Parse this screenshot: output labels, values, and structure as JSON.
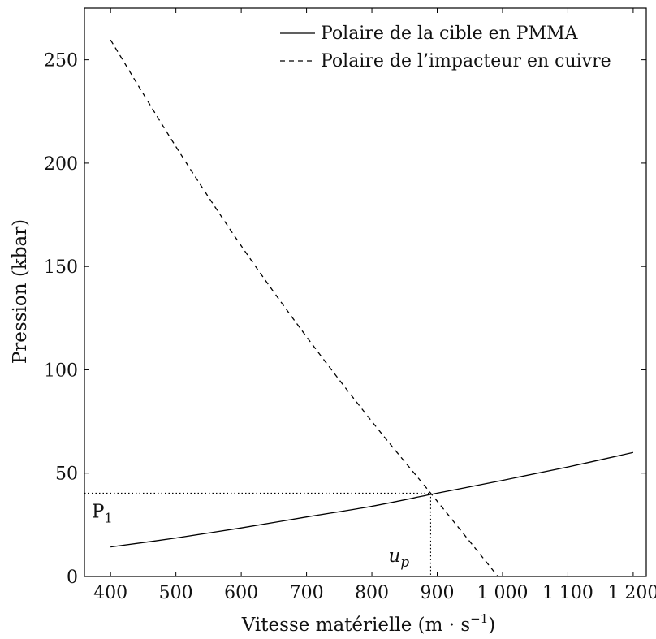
{
  "chart_data": {
    "type": "line",
    "xlabel": "Vitesse matérielle (m · s",
    "xlabel_sup": "−1",
    "xlabel_close": ")",
    "ylabel": "Pression (kbar)",
    "xlim": [
      360,
      1220
    ],
    "ylim": [
      0,
      275
    ],
    "x_ticks": [
      400,
      500,
      600,
      700,
      800,
      900,
      1000,
      1100,
      1200
    ],
    "x_tick_labels": [
      "400",
      "500",
      "600",
      "700",
      "800",
      "900",
      "1 000",
      "1 100",
      "1 200"
    ],
    "y_ticks": [
      0,
      50,
      100,
      150,
      200,
      250
    ],
    "y_tick_labels": [
      "0",
      "50",
      "100",
      "150",
      "200",
      "250"
    ],
    "grid": false,
    "legend_position": "top-right",
    "series": [
      {
        "name": "Polaire de la cible en PMMA",
        "style": "solid",
        "x": [
          400,
          500,
          600,
          700,
          800,
          900,
          1000,
          1100,
          1200
        ],
        "y": [
          14.3,
          18.6,
          23.5,
          28.8,
          34.0,
          40.3,
          46.5,
          53.0,
          60.0
        ]
      },
      {
        "name": "Polaire de l’impacteur en cuivre",
        "style": "dashed",
        "x": [
          400,
          500,
          600,
          700,
          800,
          890,
          993
        ],
        "y": [
          259.6,
          208.0,
          160.0,
          116.0,
          75.0,
          40.3,
          0.0
        ]
      }
    ],
    "annotations": {
      "intersection": {
        "x": 890,
        "y": 40.3
      },
      "p1_base": "P",
      "p1_sub": "1",
      "up_base": "u",
      "up_sub": "p"
    },
    "colors": {
      "line": "#000000",
      "axis": "#000000"
    }
  }
}
